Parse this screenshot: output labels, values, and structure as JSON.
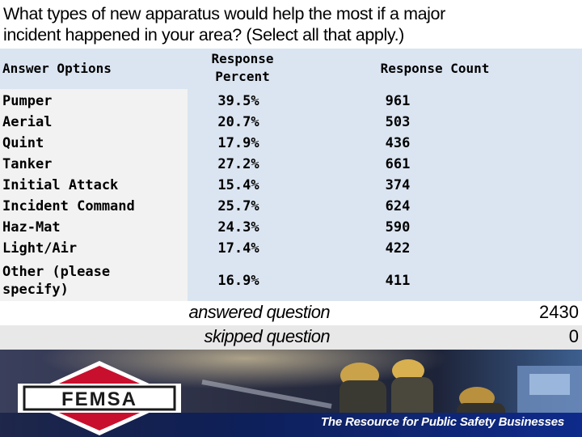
{
  "question": {
    "line1": "What types of new apparatus would help the most if a major",
    "line2": "incident happened in your area? (Select all that apply.)"
  },
  "table": {
    "headers": {
      "options": "Answer Options",
      "percent_line1": "Response",
      "percent_line2": "Percent",
      "count": "Response Count"
    },
    "rows": [
      {
        "label": "Pumper",
        "percent": "39.5%",
        "count": "961"
      },
      {
        "label": "Aerial",
        "percent": "20.7%",
        "count": "503"
      },
      {
        "label": "Quint",
        "percent": "17.9%",
        "count": "436"
      },
      {
        "label": "Tanker",
        "percent": "27.2%",
        "count": "661"
      },
      {
        "label": "Initial Attack",
        "percent": "15.4%",
        "count": "374"
      },
      {
        "label": "Incident Command",
        "percent": "25.7%",
        "count": "624"
      },
      {
        "label": "Haz-Mat",
        "percent": "24.3%",
        "count": "590"
      },
      {
        "label": "Light/Air",
        "percent": "17.4%",
        "count": "422"
      },
      {
        "label_line1": "Other (please",
        "label_line2": "specify)",
        "percent": "16.9%",
        "count": "411"
      }
    ]
  },
  "summary": {
    "answered_label": "answered question",
    "answered_value": "2430",
    "skipped_label": "skipped question",
    "skipped_value": "0"
  },
  "banner": {
    "logo_text": "FEMSA",
    "tagline": "The Resource for Public Safety Businesses"
  },
  "colors": {
    "header_bg": "#dbe5f1",
    "label_col_bg": "#f2f2f2",
    "banner_blue": "#0e2a8a",
    "logo_red": "#c8102e"
  }
}
